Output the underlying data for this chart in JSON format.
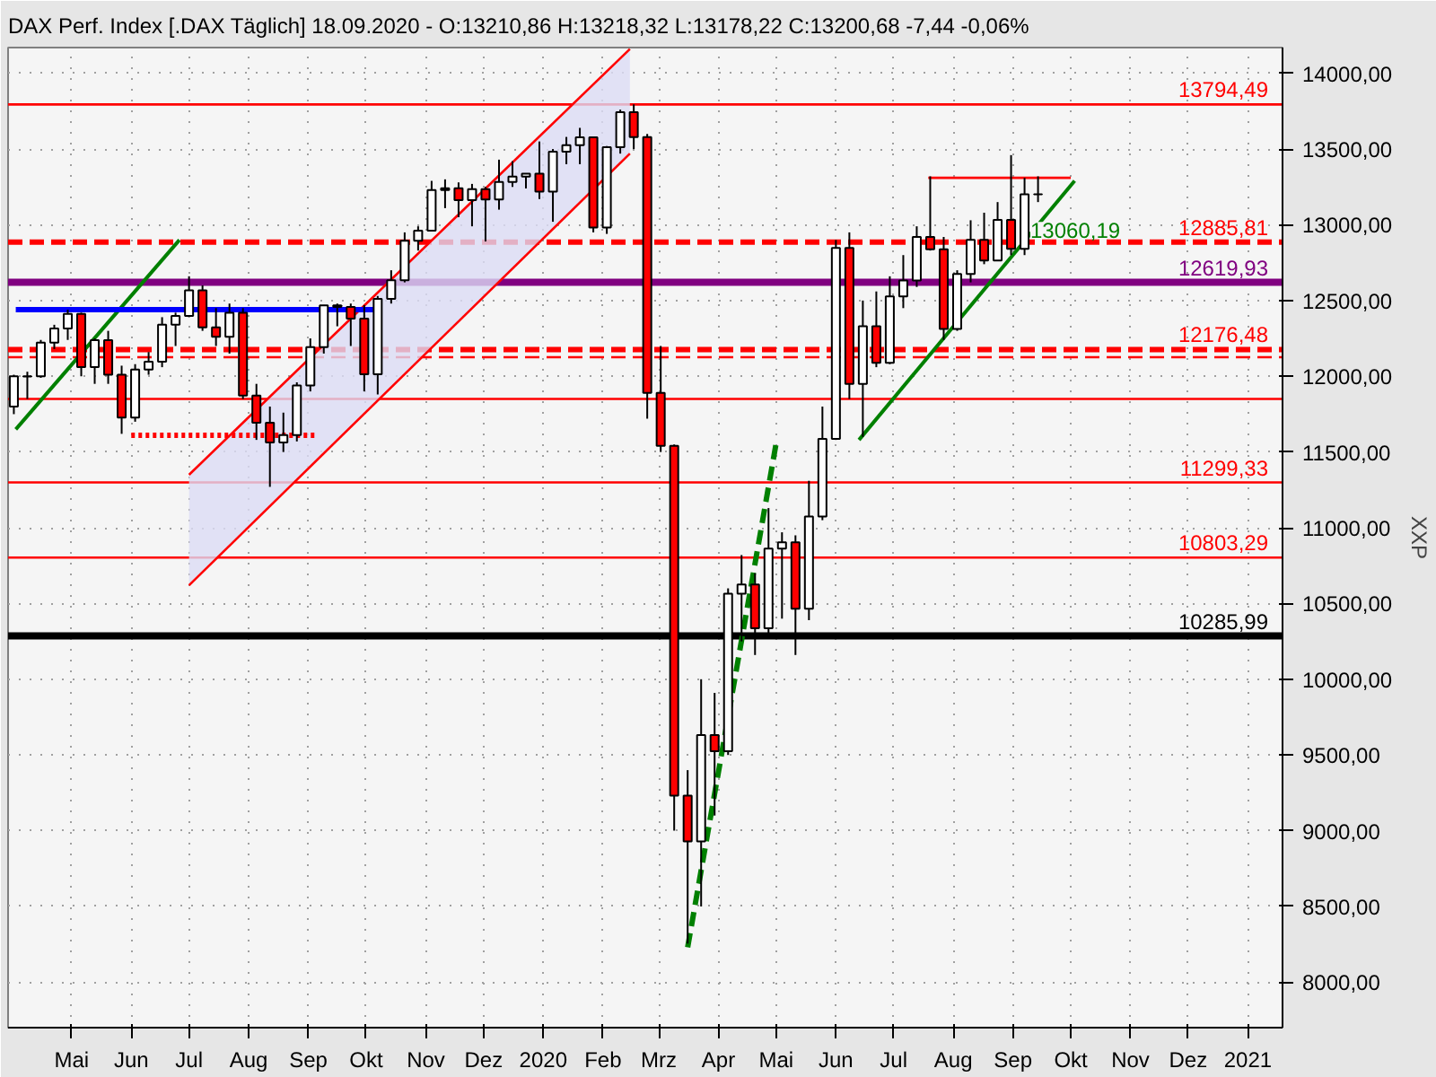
{
  "chart_data": {
    "type": "candlestick",
    "title": "DAX Perf. Index [.DAX  Täglich] 18.09.2020 - O:13210,86 H:13218,32 L:13178,22 C:13200,68 -7,44 -0,06%",
    "ylabel": "XXP",
    "x": [
      "2019-04-01",
      "2019-04-08",
      "2019-04-15",
      "2019-04-22",
      "2019-04-29",
      "2019-05-06",
      "2019-05-13",
      "2019-05-20",
      "2019-05-27",
      "2019-06-03",
      "2019-06-10",
      "2019-06-17",
      "2019-06-24",
      "2019-07-01",
      "2019-07-08",
      "2019-07-15",
      "2019-07-22",
      "2019-07-29",
      "2019-08-05",
      "2019-08-12",
      "2019-08-19",
      "2019-08-26",
      "2019-09-02",
      "2019-09-09",
      "2019-09-16",
      "2019-09-23",
      "2019-09-30",
      "2019-10-07",
      "2019-10-14",
      "2019-10-21",
      "2019-10-28",
      "2019-11-04",
      "2019-11-11",
      "2019-11-18",
      "2019-11-25",
      "2019-12-02",
      "2019-12-09",
      "2019-12-16",
      "2019-12-23",
      "2019-12-30",
      "2020-01-06",
      "2020-01-13",
      "2020-01-20",
      "2020-01-27",
      "2020-02-03",
      "2020-02-10",
      "2020-02-17",
      "2020-02-24",
      "2020-03-02",
      "2020-03-09",
      "2020-03-16",
      "2020-03-23",
      "2020-03-30",
      "2020-04-06",
      "2020-04-13",
      "2020-04-20",
      "2020-04-27",
      "2020-05-04",
      "2020-05-11",
      "2020-05-18",
      "2020-05-25",
      "2020-06-01",
      "2020-06-08",
      "2020-06-15",
      "2020-06-22",
      "2020-06-29",
      "2020-07-06",
      "2020-07-13",
      "2020-07-20",
      "2020-07-27",
      "2020-08-03",
      "2020-08-10",
      "2020-08-17",
      "2020-08-24",
      "2020-08-31",
      "2020-09-07",
      "2020-09-14"
    ],
    "ohlc": [
      [
        11800,
        12010,
        11750,
        12000
      ],
      [
        12000,
        12030,
        11850,
        11999
      ],
      [
        12000,
        12240,
        11990,
        12222
      ],
      [
        12222,
        12340,
        12180,
        12315
      ],
      [
        12315,
        12440,
        12240,
        12412
      ],
      [
        12412,
        12420,
        12000,
        12060
      ],
      [
        12060,
        12250,
        11950,
        12238
      ],
      [
        12238,
        12300,
        11950,
        12011
      ],
      [
        12011,
        12070,
        11620,
        11727
      ],
      [
        11727,
        12080,
        11700,
        12045
      ],
      [
        12045,
        12160,
        12010,
        12096
      ],
      [
        12096,
        12390,
        12060,
        12340
      ],
      [
        12340,
        12420,
        12200,
        12399
      ],
      [
        12399,
        12660,
        12390,
        12568
      ],
      [
        12568,
        12600,
        12300,
        12323
      ],
      [
        12323,
        12450,
        12200,
        12260
      ],
      [
        12260,
        12480,
        12150,
        12419
      ],
      [
        12419,
        12450,
        11850,
        11872
      ],
      [
        11872,
        11950,
        11580,
        11693
      ],
      [
        11693,
        11800,
        11270,
        11563
      ],
      [
        11563,
        11760,
        11500,
        11612
      ],
      [
        11612,
        11960,
        11570,
        11939
      ],
      [
        11939,
        12250,
        11900,
        12192
      ],
      [
        12192,
        12470,
        12150,
        12468
      ],
      [
        12468,
        12480,
        12330,
        12457
      ],
      [
        12457,
        12480,
        12200,
        12381
      ],
      [
        12381,
        12470,
        11900,
        12013
      ],
      [
        12013,
        12530,
        11880,
        12511
      ],
      [
        12511,
        12700,
        12480,
        12634
      ],
      [
        12634,
        12950,
        12620,
        12895
      ],
      [
        12895,
        12990,
        12830,
        12961
      ],
      [
        12961,
        13290,
        12960,
        13229
      ],
      [
        13229,
        13300,
        13110,
        13242
      ],
      [
        13242,
        13280,
        13050,
        13163
      ],
      [
        13163,
        13270,
        12990,
        13236
      ],
      [
        13236,
        13250,
        12890,
        13167
      ],
      [
        13167,
        13430,
        13100,
        13283
      ],
      [
        13283,
        13420,
        13250,
        13318
      ],
      [
        13318,
        13340,
        13240,
        13337
      ],
      [
        13337,
        13550,
        13170,
        13219
      ],
      [
        13219,
        13500,
        13020,
        13483
      ],
      [
        13483,
        13580,
        13400,
        13526
      ],
      [
        13526,
        13640,
        13400,
        13577
      ],
      [
        13577,
        13580,
        12950,
        12982
      ],
      [
        12982,
        13520,
        12940,
        13513
      ],
      [
        13513,
        13760,
        13470,
        13744
      ],
      [
        13744,
        13795,
        13500,
        13579
      ],
      [
        13579,
        13600,
        11720,
        11890
      ],
      [
        11890,
        12200,
        11500,
        11541
      ],
      [
        11541,
        11550,
        9000,
        9232
      ],
      [
        9232,
        9400,
        8255,
        8929
      ],
      [
        8929,
        10000,
        8500,
        9632
      ],
      [
        9632,
        9910,
        9100,
        9525
      ],
      [
        9525,
        10600,
        9500,
        10564
      ],
      [
        10564,
        10820,
        10250,
        10625
      ],
      [
        10625,
        10700,
        10160,
        10336
      ],
      [
        10336,
        11130,
        10300,
        10862
      ],
      [
        10862,
        10970,
        10400,
        10904
      ],
      [
        10904,
        10950,
        10160,
        10465
      ],
      [
        10465,
        11310,
        10390,
        11074
      ],
      [
        11074,
        11800,
        11050,
        11587
      ],
      [
        11587,
        12900,
        11580,
        12848
      ],
      [
        12848,
        12950,
        11850,
        11949
      ],
      [
        11949,
        12500,
        11600,
        12331
      ],
      [
        12331,
        12560,
        12060,
        12089
      ],
      [
        12089,
        12660,
        12080,
        12528
      ],
      [
        12528,
        12800,
        12450,
        12633
      ],
      [
        12633,
        12990,
        12590,
        12920
      ],
      [
        12920,
        13320,
        12830,
        12838
      ],
      [
        12838,
        12920,
        12240,
        12313
      ],
      [
        12313,
        12700,
        12300,
        12675
      ],
      [
        12675,
        13030,
        12620,
        12901
      ],
      [
        12901,
        13080,
        12740,
        12765
      ],
      [
        12765,
        13150,
        12760,
        13033
      ],
      [
        13033,
        13460,
        12800,
        12842
      ],
      [
        12842,
        13310,
        12800,
        13202
      ],
      [
        13202,
        13320,
        13150,
        13201
      ]
    ],
    "series": [
      {
        "type": "line",
        "x": [
          "2019-07-01",
          "2020-02-15"
        ],
        "values": [
          10620,
          13470
        ],
        "lower": [
          10620,
          13470
        ],
        "upper": [
          11350,
          14160
        ],
        "color": "#ff0000",
        "line_style": "solid"
      },
      {
        "type": "line",
        "x": [
          "2019-07-01",
          "2020-02-15"
        ],
        "values": [
          11350,
          14160
        ],
        "color": "#ff0000",
        "line_style": "solid"
      },
      {
        "type": "line",
        "x": [
          "2019-04-02",
          "2019-06-26"
        ],
        "values": [
          11650,
          12900
        ],
        "color": "#008000",
        "line_style": "solid"
      },
      {
        "type": "line",
        "x": [
          "2019-04-02",
          "2019-10-06"
        ],
        "values": [
          12440,
          12440
        ],
        "color": "#0000ff",
        "line_style": "solid"
      },
      {
        "type": "line",
        "x": [
          "2019-06-01",
          "2019-09-05"
        ],
        "values": [
          11610,
          11610
        ],
        "color": "#ff0000",
        "line_style": "dotted"
      },
      {
        "type": "line",
        "x": [
          "2020-03-16",
          "2020-05-01"
        ],
        "values": [
          8230,
          11560
        ],
        "color": "#008000",
        "line_style": "dashed"
      },
      {
        "type": "line",
        "x": [
          "2020-06-13",
          "2020-10-03"
        ],
        "values": [
          11580,
          13290
        ],
        "color": "#008000",
        "line_style": "solid"
      },
      {
        "type": "line",
        "x": [
          "2020-07-19",
          "2020-10-01"
        ],
        "values": [
          13310,
          13310
        ],
        "color": "#ff0000",
        "line_style": "solid"
      }
    ],
    "ref_lines": [
      {
        "axis": "y",
        "value": 13794.49,
        "label": "13794,49",
        "color": "#ff0000",
        "line_style": "solid"
      },
      {
        "axis": "y",
        "value": 12885.81,
        "label": "12885,81",
        "color": "#ff0000",
        "line_style": "dashed"
      },
      {
        "axis": "y",
        "value": 12619.93,
        "label": "12619,93",
        "color": "#800080",
        "line_style": "solid"
      },
      {
        "axis": "y",
        "value": 12176.48,
        "label": "12176,48",
        "color": "#ff0000",
        "line_style": "dashed"
      },
      {
        "axis": "y",
        "value": 12126,
        "color": "#ff0000",
        "line_style": "dashed"
      },
      {
        "axis": "y",
        "value": 11850,
        "color": "#ff0000",
        "line_style": "solid"
      },
      {
        "axis": "y",
        "value": 11299.33,
        "label": "11299,33",
        "color": "#ff0000",
        "line_style": "solid"
      },
      {
        "axis": "y",
        "value": 10803.29,
        "label": "10803,29",
        "color": "#ff0000",
        "line_style": "solid"
      },
      {
        "axis": "y",
        "value": 10285.99,
        "label": "10285,99",
        "color": "#000000",
        "line_style": "solid"
      }
    ],
    "annotations": [
      {
        "text": "13060,19",
        "x": "2020-09-10",
        "y": 12960
      }
    ],
    "xlim": [
      "2019-03-29",
      "2021-01-19"
    ],
    "xticks": [
      {
        "value": "2019-05-01",
        "label": "Mai"
      },
      {
        "value": "2019-06-01",
        "label": "Jun"
      },
      {
        "value": "2019-07-01",
        "label": "Jul"
      },
      {
        "value": "2019-08-01",
        "label": "Aug"
      },
      {
        "value": "2019-09-01",
        "label": "Sep"
      },
      {
        "value": "2019-10-01",
        "label": "Okt"
      },
      {
        "value": "2019-11-01",
        "label": "Nov"
      },
      {
        "value": "2019-12-01",
        "label": "Dez"
      },
      {
        "value": "2020-01-01",
        "label": "2020"
      },
      {
        "value": "2020-02-01",
        "label": "Feb"
      },
      {
        "value": "2020-03-01",
        "label": "Mrz"
      },
      {
        "value": "2020-04-01",
        "label": "Apr"
      },
      {
        "value": "2020-05-01",
        "label": "Mai"
      },
      {
        "value": "2020-06-01",
        "label": "Jun"
      },
      {
        "value": "2020-07-01",
        "label": "Jul"
      },
      {
        "value": "2020-08-01",
        "label": "Aug"
      },
      {
        "value": "2020-09-01",
        "label": "Sep"
      },
      {
        "value": "2020-10-01",
        "label": "Okt"
      },
      {
        "value": "2020-11-01",
        "label": "Nov"
      },
      {
        "value": "2020-12-01",
        "label": "Dez"
      },
      {
        "value": "2021-01-01",
        "label": "2021"
      }
    ],
    "ylim": [
      7700,
      14170
    ],
    "yticks": [
      {
        "value": 8000,
        "label": "8000,00"
      },
      {
        "value": 8500,
        "label": "8500,00"
      },
      {
        "value": 9000,
        "label": "9000,00"
      },
      {
        "value": 9500,
        "label": "9500,00"
      },
      {
        "value": 10000,
        "label": "10000,00"
      },
      {
        "value": 10500,
        "label": "10500,00"
      },
      {
        "value": 11000,
        "label": "11000,00"
      },
      {
        "value": 11500,
        "label": "11500,00"
      },
      {
        "value": 12000,
        "label": "12000,00"
      },
      {
        "value": 12500,
        "label": "12500,00"
      },
      {
        "value": 13000,
        "label": "13000,00"
      },
      {
        "value": 13500,
        "label": "13500,00"
      },
      {
        "value": 14000,
        "label": "14000,00"
      }
    ],
    "grid": true
  }
}
